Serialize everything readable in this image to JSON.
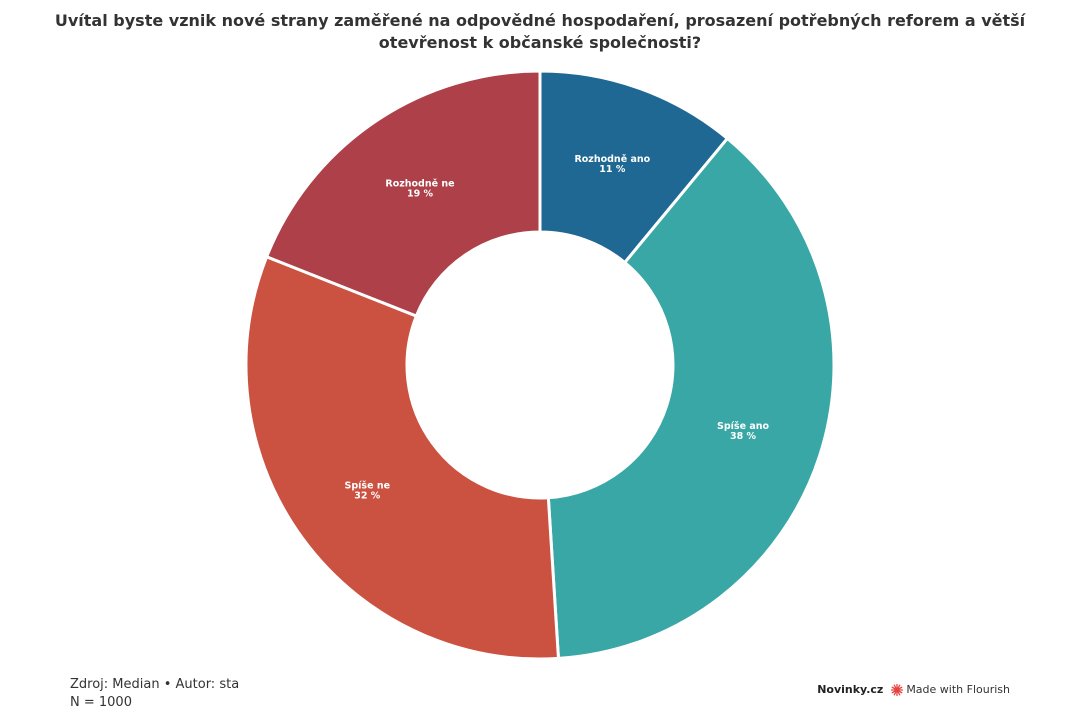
{
  "title_lines": [
    "Uvítal byste vznik nové strany zaměřené na odpovědné hospodaření, prosazení potřebných reforem a větší",
    "otevřenost k občanské společnosti?"
  ],
  "chart_data": {
    "type": "pie",
    "donut": true,
    "title": "Uvítal byste vznik nové strany zaměřené na odpovědné hospodaření, prosazení potřebných reforem a větší otevřenost k občanské společnosti?",
    "slices": [
      {
        "label": "Rozhodně ano",
        "value": 11,
        "value_label": "11 %",
        "color": "#1f6893"
      },
      {
        "label": "Spíše ano",
        "value": 38,
        "value_label": "38 %",
        "color": "#39a7a5"
      },
      {
        "label": "Spíše ne",
        "value": 32,
        "value_label": "32 %",
        "color": "#cb5240"
      },
      {
        "label": "Rozhodně ne",
        "value": 19,
        "value_label": "19 %",
        "color": "#ad4048"
      }
    ]
  },
  "footer": {
    "source": "Zdroj: Median • Autor: sta",
    "n": "N = 1000"
  },
  "branding": {
    "logo": "Novinky.cz",
    "flourish": "Made with Flourish",
    "flourish_icon": "flourish-burst-icon",
    "flourish_color": "#e6433e"
  }
}
